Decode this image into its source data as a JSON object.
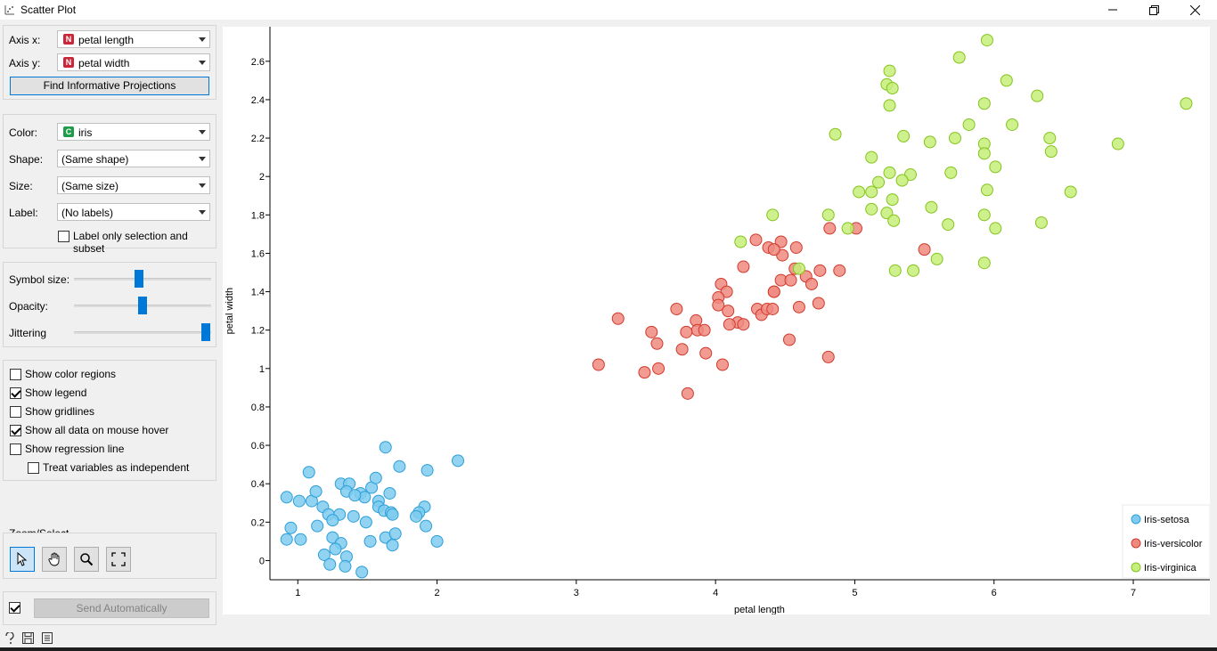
{
  "window": {
    "title": "Scatter Plot"
  },
  "axes_box": {
    "x_label": "Axis x:",
    "x_value": "petal length",
    "x_tag": "N",
    "y_label": "Axis y:",
    "y_value": "petal width",
    "y_tag": "N",
    "find_button": "Find Informative Projections"
  },
  "attributes": {
    "color_label": "Color:",
    "color_value": "iris",
    "color_tag": "C",
    "shape_label": "Shape:",
    "shape_value": "(Same shape)",
    "size_label": "Size:",
    "size_value": "(Same size)",
    "label_label": "Label:",
    "label_value": "(No labels)",
    "label_only_selection": "Label only selection and subset"
  },
  "sliders": {
    "symbol_size_label": "Symbol size:",
    "symbol_size_value": 0.47,
    "opacity_label": "Opacity:",
    "opacity_value": 0.5,
    "jittering_label": "Jittering",
    "jittering_value": 1.0
  },
  "options": {
    "show_color_regions": "Show color regions",
    "show_color_regions_checked": false,
    "show_legend": "Show legend",
    "show_legend_checked": true,
    "show_gridlines": "Show gridlines",
    "show_gridlines_checked": false,
    "show_all_data": "Show all data on mouse hover",
    "show_all_data_checked": true,
    "show_regression": "Show regression line",
    "show_regression_checked": false,
    "treat_independent": "Treat variables as independent",
    "treat_independent_checked": false
  },
  "zoom": {
    "label": "Zoom/Select"
  },
  "send": {
    "label": "Send Automatically",
    "checked": true
  },
  "colors": {
    "setosa_fill": "#7ecbef",
    "setosa_stroke": "#2d9fd8",
    "versicolor_fill": "#ee8a80",
    "versicolor_stroke": "#d23a2c",
    "virginica_fill": "#c6ee7a",
    "virginica_stroke": "#84c41c",
    "accent": "#0078d7"
  },
  "chart_data": {
    "type": "scatter",
    "xlabel": "petal length",
    "ylabel": "petal width",
    "xlim": [
      0.8,
      7.55
    ],
    "ylim": [
      -0.1,
      2.78
    ],
    "xticks": [
      1,
      2,
      3,
      4,
      5,
      6,
      7
    ],
    "yticks": [
      0,
      0.2,
      0.4,
      0.6,
      0.8,
      1,
      1.2,
      1.4,
      1.6,
      1.8,
      2,
      2.2,
      2.4,
      2.6
    ],
    "ytick_labels": [
      "0",
      "0.2",
      "0.4",
      "0.6",
      "0.8",
      "1",
      "1.2",
      "1.4",
      "1.6",
      "1.8",
      "2",
      "2.2",
      "2.4",
      "2.6"
    ],
    "grid": false,
    "legend_position": "bottom-right",
    "series": [
      {
        "name": "Iris-setosa",
        "points": [
          [
            1.63,
            0.59
          ],
          [
            1.08,
            0.46
          ],
          [
            1.73,
            0.49
          ],
          [
            1.93,
            0.47
          ],
          [
            2.15,
            0.52
          ],
          [
            0.92,
            0.33
          ],
          [
            1.01,
            0.31
          ],
          [
            1.1,
            0.31
          ],
          [
            1.13,
            0.36
          ],
          [
            1.31,
            0.4
          ],
          [
            1.37,
            0.4
          ],
          [
            1.35,
            0.36
          ],
          [
            1.45,
            0.35
          ],
          [
            1.48,
            0.33
          ],
          [
            1.53,
            0.38
          ],
          [
            1.56,
            0.43
          ],
          [
            1.58,
            0.31
          ],
          [
            1.66,
            0.35
          ],
          [
            1.41,
            0.34
          ],
          [
            1.18,
            0.28
          ],
          [
            1.22,
            0.24
          ],
          [
            1.3,
            0.24
          ],
          [
            1.4,
            0.23
          ],
          [
            1.25,
            0.21
          ],
          [
            0.95,
            0.17
          ],
          [
            1.14,
            0.18
          ],
          [
            1.49,
            0.2
          ],
          [
            1.58,
            0.28
          ],
          [
            1.62,
            0.26
          ],
          [
            1.67,
            0.25
          ],
          [
            1.68,
            0.24
          ],
          [
            1.91,
            0.28
          ],
          [
            1.87,
            0.25
          ],
          [
            1.85,
            0.23
          ],
          [
            1.92,
            0.18
          ],
          [
            0.92,
            0.11
          ],
          [
            1.02,
            0.11
          ],
          [
            1.25,
            0.12
          ],
          [
            1.31,
            0.09
          ],
          [
            1.27,
            0.06
          ],
          [
            1.19,
            0.03
          ],
          [
            1.35,
            0.02
          ],
          [
            1.52,
            0.1
          ],
          [
            1.63,
            0.12
          ],
          [
            1.7,
            0.14
          ],
          [
            1.68,
            0.08
          ],
          [
            2.0,
            0.1
          ],
          [
            1.23,
            -0.02
          ],
          [
            1.34,
            -0.03
          ],
          [
            1.46,
            -0.06
          ]
        ]
      },
      {
        "name": "Iris-versicolor",
        "points": [
          [
            4.29,
            1.67
          ],
          [
            4.38,
            1.63
          ],
          [
            4.47,
            1.66
          ],
          [
            4.58,
            1.63
          ],
          [
            4.82,
            1.73
          ],
          [
            5.01,
            1.73
          ],
          [
            4.2,
            1.53
          ],
          [
            4.48,
            1.59
          ],
          [
            4.42,
            1.62
          ],
          [
            4.57,
            1.52
          ],
          [
            4.65,
            1.48
          ],
          [
            4.75,
            1.51
          ],
          [
            4.89,
            1.51
          ],
          [
            4.04,
            1.44
          ],
          [
            4.08,
            1.4
          ],
          [
            4.42,
            1.4
          ],
          [
            4.47,
            1.46
          ],
          [
            4.54,
            1.46
          ],
          [
            4.69,
            1.44
          ],
          [
            5.5,
            1.62
          ],
          [
            4.02,
            1.37
          ],
          [
            4.02,
            1.33
          ],
          [
            4.09,
            1.3
          ],
          [
            4.3,
            1.31
          ],
          [
            4.33,
            1.28
          ],
          [
            4.37,
            1.31
          ],
          [
            4.41,
            1.31
          ],
          [
            4.6,
            1.32
          ],
          [
            4.74,
            1.34
          ],
          [
            3.3,
            1.26
          ],
          [
            3.72,
            1.31
          ],
          [
            4.16,
            1.24
          ],
          [
            4.2,
            1.23
          ],
          [
            4.1,
            1.23
          ],
          [
            3.86,
            1.25
          ],
          [
            3.87,
            1.2
          ],
          [
            3.79,
            1.19
          ],
          [
            3.92,
            1.2
          ],
          [
            3.54,
            1.19
          ],
          [
            3.58,
            1.13
          ],
          [
            3.76,
            1.1
          ],
          [
            3.93,
            1.08
          ],
          [
            4.53,
            1.15
          ],
          [
            3.16,
            1.02
          ],
          [
            3.49,
            0.98
          ],
          [
            3.59,
            1.0
          ],
          [
            4.05,
            1.02
          ],
          [
            4.81,
            1.06
          ],
          [
            3.8,
            0.87
          ],
          [
            4.42,
            1.4
          ]
        ]
      },
      {
        "name": "Iris-virginica",
        "points": [
          [
            5.95,
            2.71
          ],
          [
            5.75,
            2.62
          ],
          [
            5.25,
            2.55
          ],
          [
            5.23,
            2.48
          ],
          [
            5.27,
            2.46
          ],
          [
            6.09,
            2.5
          ],
          [
            6.31,
            2.42
          ],
          [
            5.93,
            2.38
          ],
          [
            5.25,
            2.37
          ],
          [
            7.38,
            2.38
          ],
          [
            5.82,
            2.27
          ],
          [
            6.13,
            2.27
          ],
          [
            4.86,
            2.22
          ],
          [
            5.35,
            2.21
          ],
          [
            5.54,
            2.18
          ],
          [
            5.72,
            2.2
          ],
          [
            5.93,
            2.17
          ],
          [
            6.4,
            2.2
          ],
          [
            6.89,
            2.17
          ],
          [
            5.93,
            2.12
          ],
          [
            6.41,
            2.13
          ],
          [
            5.12,
            2.1
          ],
          [
            6.01,
            2.05
          ],
          [
            5.25,
            2.02
          ],
          [
            5.4,
            2.01
          ],
          [
            5.34,
            1.98
          ],
          [
            5.17,
            1.97
          ],
          [
            5.69,
            2.02
          ],
          [
            5.03,
            1.92
          ],
          [
            5.12,
            1.92
          ],
          [
            5.27,
            1.88
          ],
          [
            5.95,
            1.93
          ],
          [
            6.55,
            1.92
          ],
          [
            5.12,
            1.83
          ],
          [
            5.23,
            1.81
          ],
          [
            5.55,
            1.84
          ],
          [
            4.81,
            1.8
          ],
          [
            4.41,
            1.8
          ],
          [
            5.28,
            1.77
          ],
          [
            5.93,
            1.8
          ],
          [
            6.34,
            1.76
          ],
          [
            5.67,
            1.75
          ],
          [
            6.01,
            1.73
          ],
          [
            4.95,
            1.73
          ],
          [
            4.18,
            1.66
          ],
          [
            5.59,
            1.57
          ],
          [
            5.29,
            1.51
          ],
          [
            5.42,
            1.51
          ],
          [
            4.6,
            1.52
          ],
          [
            5.93,
            1.55
          ]
        ]
      }
    ]
  }
}
